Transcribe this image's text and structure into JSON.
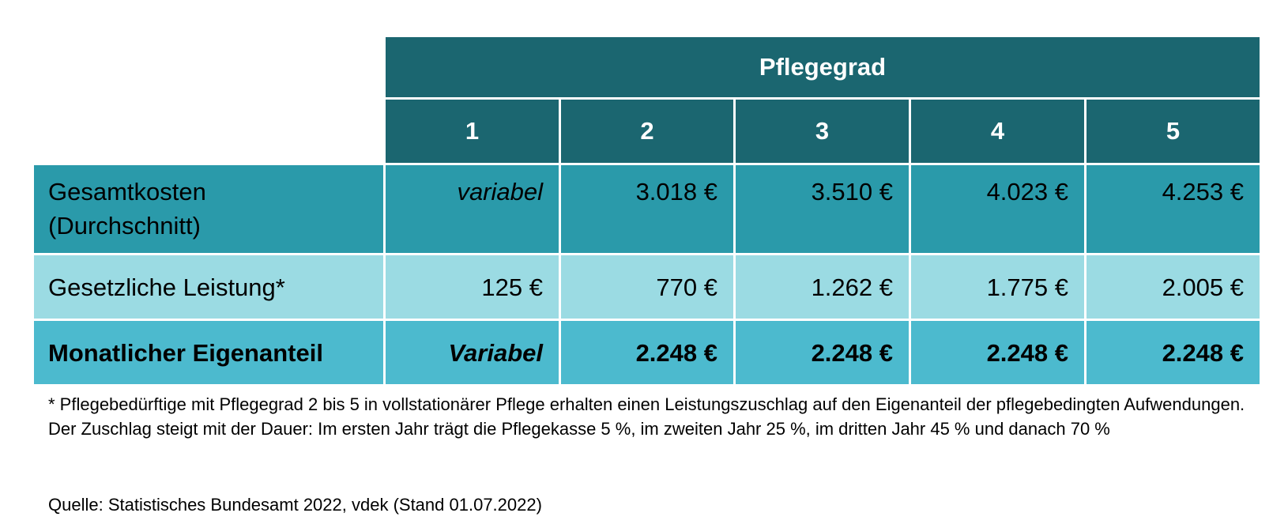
{
  "header": {
    "group_label": "Pflegegrad",
    "grades": [
      "1",
      "2",
      "3",
      "4",
      "5"
    ]
  },
  "rows": [
    {
      "label_line1": "Gesamtkosten",
      "label_line2": "(Durchschnitt)",
      "values": [
        "variabel",
        "3.018 €",
        "3.510 €",
        "4.023 €",
        "4.253 €"
      ],
      "color": "#2a9aaa"
    },
    {
      "label": "Gesetzliche Leistung*",
      "values": [
        "125 €",
        "770 €",
        "1.262 €",
        "1.775 €",
        "2.005 €"
      ],
      "color": "#9bdbe3"
    },
    {
      "label": "Monatlicher Eigenanteil",
      "values": [
        "Variabel",
        "2.248 €",
        "2.248 €",
        "2.248 €",
        "2.248 €"
      ],
      "color": "#4cbace"
    }
  ],
  "header_color": "#1b6670",
  "footnote": "* Pflegebedürftige mit Pflegegrad 2 bis 5 in vollstationärer Pflege erhalten einen Leistungszuschlag auf den Eigenanteil der pflegebedingten Aufwendungen. Der Zuschlag steigt mit der Dauer: Im ersten Jahr trägt die Pflegekasse 5 %, im zweiten Jahr 25 %, im dritten Jahr 45 % und danach 70 %",
  "source": "Quelle: Statistisches Bundesamt 2022, vdek (Stand 01.07.2022)"
}
